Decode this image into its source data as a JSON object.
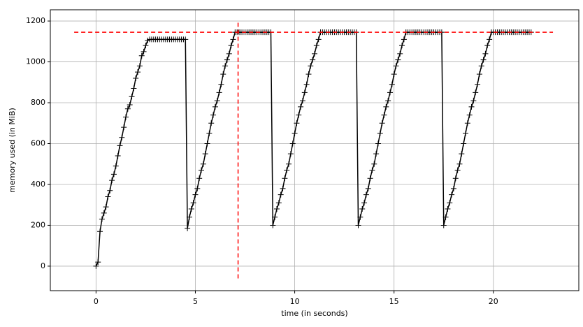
{
  "chart_data": {
    "type": "line",
    "xlabel": "time (in seconds)",
    "ylabel": "memory used (in MiB)",
    "x": [
      0,
      0.1,
      0.2,
      0.3,
      0.4,
      0.5,
      0.6,
      0.7,
      0.8,
      0.9,
      1,
      1.1,
      1.2,
      1.3,
      1.4,
      1.5,
      1.6,
      1.7,
      1.8,
      1.9,
      2,
      2.1,
      2.2,
      2.3,
      2.4,
      2.5,
      2.6,
      2.7,
      2.8,
      2.9,
      3,
      3.1,
      3.2,
      3.3,
      3.4,
      3.5,
      3.6,
      3.7,
      3.8,
      3.9,
      4,
      4.1,
      4.2,
      4.3,
      4.4,
      4.5,
      4.6,
      4.7,
      4.8,
      4.9,
      5,
      5.1,
      5.2,
      5.3,
      5.4,
      5.5,
      5.6,
      5.7,
      5.8,
      5.9,
      6,
      6.1,
      6.2,
      6.3,
      6.4,
      6.5,
      6.6,
      6.7,
      6.8,
      6.9,
      7,
      7.1,
      7.2,
      7.3,
      7.4,
      7.5,
      7.6,
      7.7,
      7.8,
      7.9,
      8,
      8.1,
      8.2,
      8.3,
      8.4,
      8.5,
      8.6,
      8.7,
      8.8,
      8.9,
      9,
      9.1,
      9.2,
      9.3,
      9.4,
      9.5,
      9.6,
      9.7,
      9.8,
      9.9,
      10,
      10.1,
      10.2,
      10.3,
      10.4,
      10.5,
      10.6,
      10.7,
      10.8,
      10.9,
      11,
      11.1,
      11.2,
      11.3,
      11.4,
      11.5,
      11.6,
      11.7,
      11.8,
      11.9,
      12,
      12.1,
      12.2,
      12.3,
      12.4,
      12.5,
      12.6,
      12.7,
      12.8,
      12.9,
      13,
      13.1,
      13.2,
      13.3,
      13.4,
      13.5,
      13.6,
      13.7,
      13.8,
      13.9,
      14,
      14.1,
      14.2,
      14.3,
      14.4,
      14.5,
      14.6,
      14.7,
      14.8,
      14.9,
      15,
      15.1,
      15.2,
      15.3,
      15.4,
      15.5,
      15.6,
      15.7,
      15.8,
      15.9,
      16,
      16.1,
      16.2,
      16.3,
      16.4,
      16.5,
      16.6,
      16.7,
      16.8,
      16.9,
      17,
      17.1,
      17.2,
      17.3,
      17.4,
      17.5,
      17.6,
      17.7,
      17.8,
      17.9,
      18,
      18.1,
      18.2,
      18.3,
      18.4,
      18.5,
      18.6,
      18.7,
      18.8,
      18.9,
      19,
      19.1,
      19.2,
      19.3,
      19.4,
      19.5,
      19.6,
      19.7,
      19.8,
      19.9,
      20,
      20.1,
      20.2,
      20.3,
      20.4,
      20.5,
      20.6,
      20.7,
      20.8,
      20.9,
      21,
      21.1,
      21.2,
      21.3,
      21.4,
      21.5,
      21.6,
      21.7,
      21.8,
      21.9
    ],
    "series": [
      {
        "color": "#000000",
        "values": [
          0,
          20,
          170,
          230,
          260,
          290,
          340,
          370,
          420,
          450,
          490,
          540,
          590,
          630,
          680,
          730,
          770,
          790,
          830,
          870,
          920,
          950,
          980,
          1030,
          1050,
          1080,
          1105,
          1110,
          1110,
          1110,
          1110,
          1110,
          1110,
          1110,
          1110,
          1110,
          1110,
          1110,
          1110,
          1110,
          1110,
          1110,
          1110,
          1110,
          1110,
          1110,
          185,
          240,
          280,
          310,
          350,
          380,
          430,
          470,
          500,
          550,
          600,
          650,
          700,
          740,
          780,
          810,
          850,
          890,
          940,
          980,
          1010,
          1040,
          1080,
          1110,
          1145,
          1145,
          1145,
          1145,
          1145,
          1145,
          1145,
          1145,
          1145,
          1145,
          1145,
          1145,
          1145,
          1145,
          1145,
          1145,
          1145,
          1145,
          1145,
          200,
          240,
          280,
          310,
          350,
          380,
          430,
          470,
          500,
          550,
          600,
          650,
          700,
          740,
          780,
          810,
          850,
          890,
          940,
          980,
          1010,
          1040,
          1080,
          1110,
          1145,
          1145,
          1145,
          1145,
          1145,
          1145,
          1145,
          1145,
          1145,
          1145,
          1145,
          1145,
          1145,
          1145,
          1145,
          1145,
          1145,
          1145,
          1145,
          200,
          240,
          280,
          310,
          350,
          380,
          430,
          470,
          500,
          550,
          600,
          650,
          700,
          740,
          780,
          810,
          850,
          890,
          940,
          980,
          1010,
          1040,
          1080,
          1110,
          1145,
          1145,
          1145,
          1145,
          1145,
          1145,
          1145,
          1145,
          1145,
          1145,
          1145,
          1145,
          1145,
          1145,
          1145,
          1145,
          1145,
          1145,
          1145,
          200,
          240,
          280,
          310,
          350,
          380,
          430,
          470,
          500,
          550,
          600,
          650,
          700,
          740,
          780,
          810,
          850,
          890,
          940,
          980,
          1010,
          1040,
          1080,
          1110,
          1145,
          1145,
          1145,
          1145,
          1145,
          1145,
          1145,
          1145,
          1145,
          1145,
          1145,
          1145,
          1145,
          1145,
          1145,
          1145,
          1145,
          1145,
          1145,
          1145,
          1145
        ]
      }
    ],
    "hline": {
      "y": 1145,
      "xmin": -1.1,
      "xmax": 23.0,
      "color": "#ff0000"
    },
    "vline": {
      "x": 7.15,
      "ymin": -60,
      "ymax": 1200,
      "color": "#ff0000"
    },
    "xlim": [
      -2.3,
      24.3
    ],
    "ylim": [
      -120,
      1255
    ],
    "xticks": [
      0,
      5,
      10,
      15,
      20
    ],
    "yticks": [
      0,
      200,
      400,
      600,
      800,
      1000,
      1200
    ],
    "grid": true
  }
}
